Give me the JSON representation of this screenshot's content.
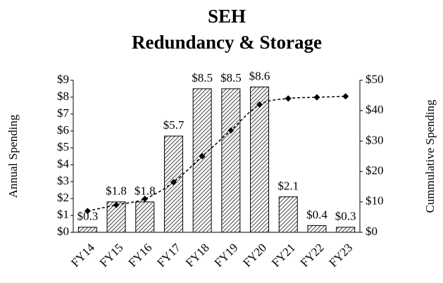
{
  "chart_data": {
    "type": "bar",
    "title": "SEH",
    "subtitle": "Redundancy & Storage",
    "y_label": "Annual Spending",
    "y2_label": "Cummulative Spending",
    "categories": [
      "FY14",
      "FY15",
      "FY16",
      "FY17",
      "FY18",
      "FY19",
      "FY20",
      "FY21",
      "FY22",
      "FY23"
    ],
    "series": [
      {
        "name": "Annual Spending",
        "type": "bar",
        "color": "#000000",
        "pattern": "diagonal-hatch",
        "values": [
          0.3,
          1.8,
          1.8,
          5.7,
          8.5,
          8.5,
          8.6,
          2.1,
          0.4,
          0.3
        ],
        "value_labels": [
          "$0.3",
          "$1.8",
          "$1.8",
          "$5.7",
          "$8.5",
          "$8.5",
          "$8.6",
          "$2.1",
          "$0.4",
          "$0.3"
        ]
      },
      {
        "name": "Cummulative Spending",
        "type": "line",
        "axis": "y2",
        "color": "#000000",
        "dashed": true,
        "marker": "diamond",
        "values": [
          7,
          9,
          11,
          16.5,
          25,
          33.5,
          42,
          44,
          44.4,
          44.7
        ]
      }
    ],
    "ylim": [
      0,
      9
    ],
    "yticks": [
      {
        "value": 0,
        "label": "$0"
      },
      {
        "value": 1,
        "label": "$1"
      },
      {
        "value": 2,
        "label": "$2"
      },
      {
        "value": 3,
        "label": "$3"
      },
      {
        "value": 4,
        "label": "$4"
      },
      {
        "value": 5,
        "label": "$5"
      },
      {
        "value": 6,
        "label": "$6"
      },
      {
        "value": 7,
        "label": "$7"
      },
      {
        "value": 8,
        "label": "$8"
      },
      {
        "value": 9,
        "label": "$9"
      }
    ],
    "y2lim": [
      0,
      50
    ],
    "y2ticks": [
      {
        "value": 0,
        "label": "$0"
      },
      {
        "value": 10,
        "label": "$10"
      },
      {
        "value": 20,
        "label": "$20"
      },
      {
        "value": 30,
        "label": "$30"
      },
      {
        "value": 40,
        "label": "$40"
      },
      {
        "value": 50,
        "label": "$50"
      }
    ],
    "grid": false
  }
}
